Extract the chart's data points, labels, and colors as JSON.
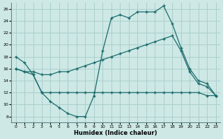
{
  "xlabel": "Humidex (Indice chaleur)",
  "background_color": "#cde8e5",
  "grid_color": "#aacfcc",
  "line_color": "#1a6b6b",
  "xlim": [
    -0.5,
    23.5
  ],
  "ylim": [
    7,
    27
  ],
  "yticks": [
    8,
    10,
    12,
    14,
    16,
    18,
    20,
    22,
    24,
    26
  ],
  "xticks": [
    0,
    1,
    2,
    3,
    4,
    5,
    6,
    7,
    8,
    9,
    10,
    11,
    12,
    13,
    14,
    15,
    16,
    17,
    18,
    19,
    20,
    21,
    22,
    23
  ],
  "series": [
    {
      "x": [
        0,
        1,
        2,
        3,
        4,
        5,
        6,
        7,
        8,
        9,
        10,
        11,
        12,
        13,
        14,
        15,
        16,
        17,
        18,
        19,
        20,
        21,
        22,
        23
      ],
      "y": [
        18,
        17,
        15,
        12,
        10.5,
        9.5,
        8.5,
        8,
        8,
        11.5,
        19,
        24.5,
        25,
        24.5,
        25.5,
        25.5,
        25.5,
        26.5,
        23.5,
        19.5,
        16,
        14,
        13.5,
        11.5
      ]
    },
    {
      "x": [
        0,
        1,
        2,
        3,
        4,
        5,
        6,
        7,
        8,
        9,
        10,
        11,
        12,
        13,
        14,
        15,
        16,
        17,
        18,
        19,
        20,
        21,
        22,
        23
      ],
      "y": [
        16,
        15.5,
        15.5,
        15,
        15,
        15.5,
        15.5,
        16,
        16.5,
        17,
        17.5,
        18,
        18.5,
        19,
        19.5,
        20,
        20.5,
        21,
        21.5,
        19,
        15.5,
        13.5,
        13,
        11.5
      ]
    },
    {
      "x": [
        0,
        1,
        2,
        3,
        4,
        5,
        6,
        7,
        8,
        9,
        10,
        11,
        12,
        13,
        14,
        15,
        16,
        17,
        18,
        19,
        20,
        21,
        22,
        23
      ],
      "y": [
        16,
        15.5,
        15,
        12,
        12,
        12,
        12,
        12,
        12,
        12,
        12,
        12,
        12,
        12,
        12,
        12,
        12,
        12,
        12,
        12,
        12,
        12,
        11.5,
        11.5
      ]
    }
  ]
}
